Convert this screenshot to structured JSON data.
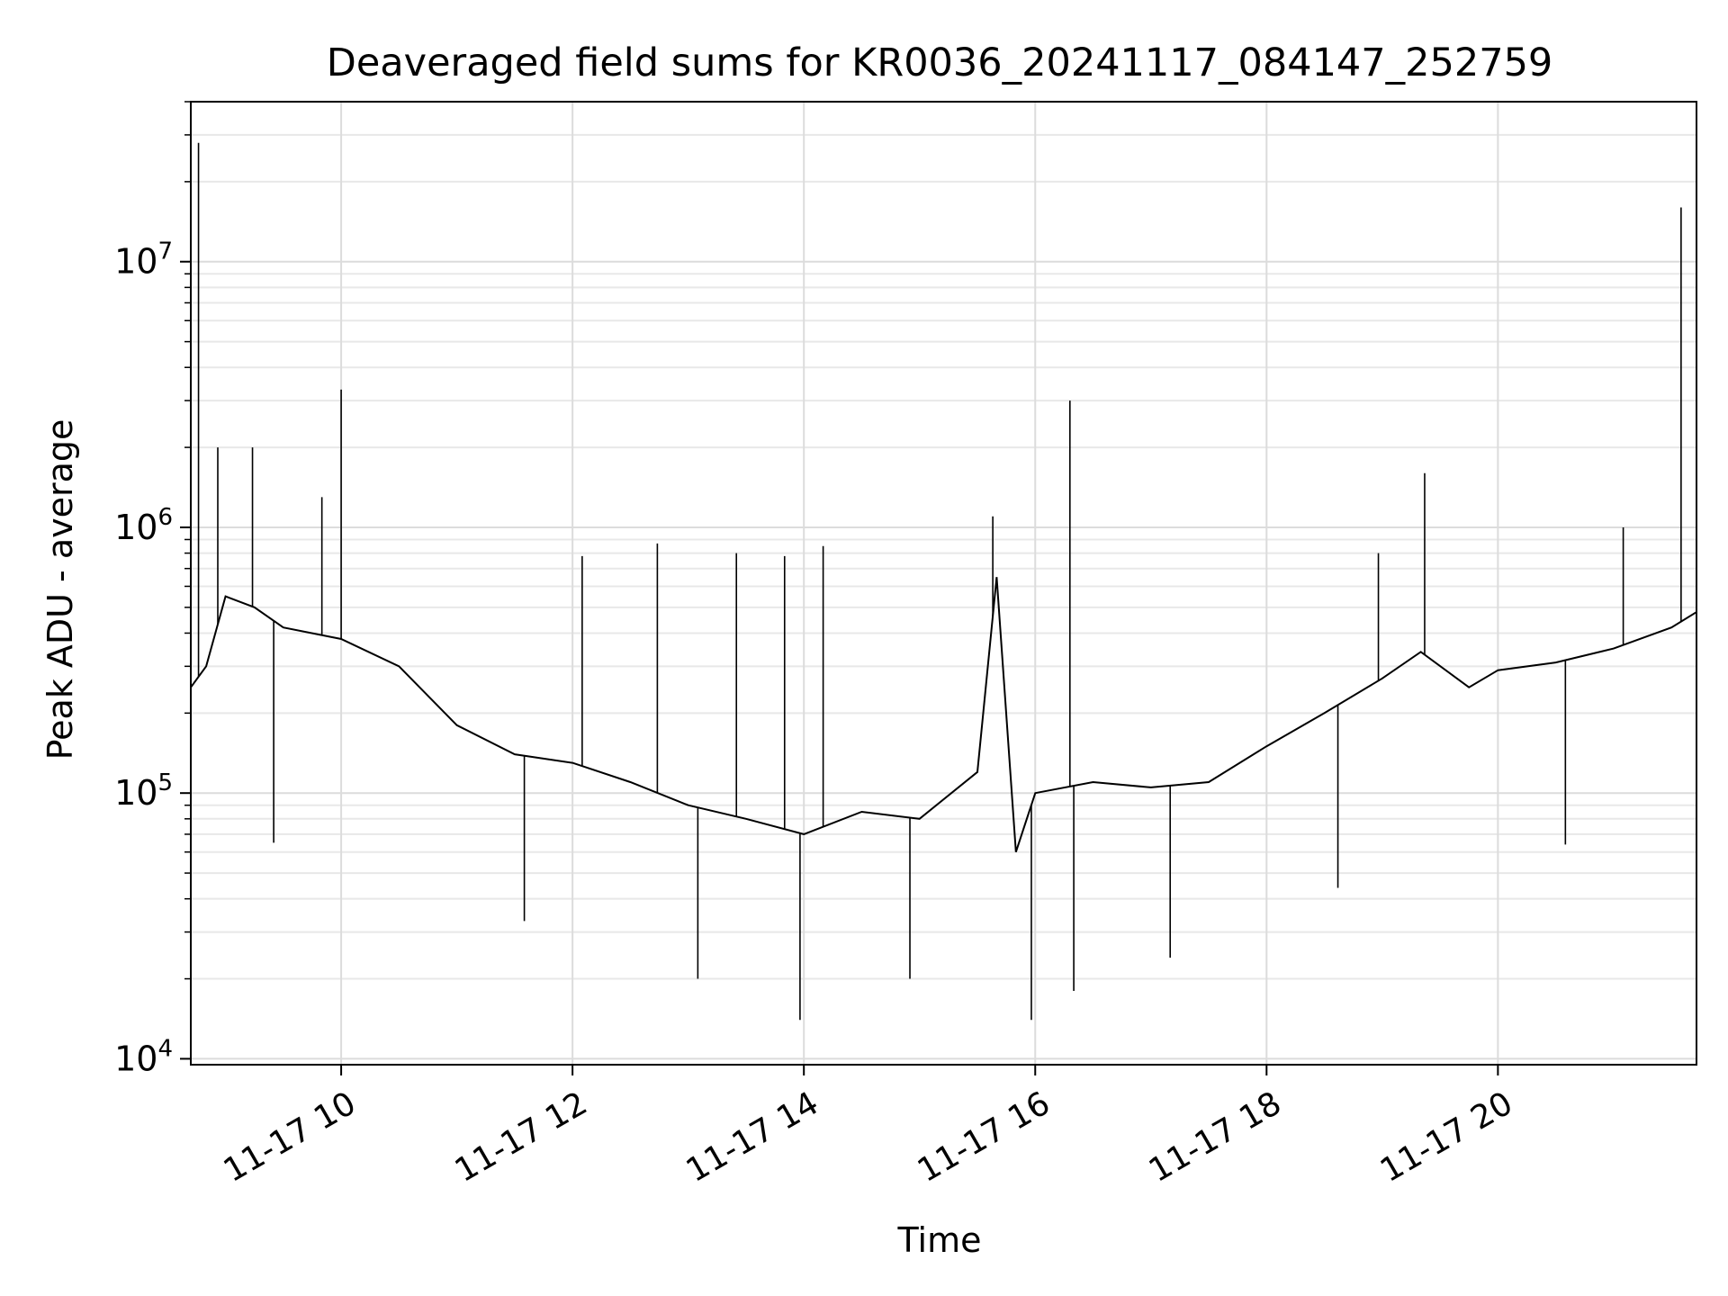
{
  "chart_data": {
    "type": "line",
    "title": "Deaveraged field sums for KR0036_20241117_084147_252759",
    "xlabel": "Time",
    "ylabel": "Peak ADU - average",
    "yscale": "log",
    "xlim": [
      "2024-11-17 08:42",
      "2024-11-17 21:43"
    ],
    "ylim": [
      9500,
      40000000
    ],
    "grid": true,
    "line_color": "#000000",
    "x_ticks": [
      "11-17 10",
      "11-17 12",
      "11-17 14",
      "11-17 16",
      "11-17 18",
      "11-17 20"
    ],
    "x_tick_values": [
      "2024-11-17 10:00",
      "2024-11-17 12:00",
      "2024-11-17 14:00",
      "2024-11-17 16:00",
      "2024-11-17 18:00",
      "2024-11-17 20:00"
    ],
    "y_ticks": [
      {
        "base": "10",
        "exp": "4",
        "value": 10000
      },
      {
        "base": "10",
        "exp": "5",
        "value": 100000
      },
      {
        "base": "10",
        "exp": "6",
        "value": 1000000
      },
      {
        "base": "10",
        "exp": "7",
        "value": 10000000
      }
    ],
    "series": [
      {
        "x": [
          "2024-11-17 08:42",
          "2024-11-17 08:50",
          "2024-11-17 09:00",
          "2024-11-17 09:15",
          "2024-11-17 09:30",
          "2024-11-17 10:00",
          "2024-11-17 10:30",
          "2024-11-17 11:00",
          "2024-11-17 11:30",
          "2024-11-17 12:00",
          "2024-11-17 12:30",
          "2024-11-17 13:00",
          "2024-11-17 13:30",
          "2024-11-17 14:00",
          "2024-11-17 14:30",
          "2024-11-17 15:00",
          "2024-11-17 15:30",
          "2024-11-17 15:40",
          "2024-11-17 15:50",
          "2024-11-17 16:00",
          "2024-11-17 16:30",
          "2024-11-17 17:00",
          "2024-11-17 17:30",
          "2024-11-17 18:00",
          "2024-11-17 18:30",
          "2024-11-17 19:00",
          "2024-11-17 19:20",
          "2024-11-17 19:45",
          "2024-11-17 20:00",
          "2024-11-17 20:30",
          "2024-11-17 21:00",
          "2024-11-17 21:30",
          "2024-11-17 21:43"
        ],
        "y": [
          250000,
          300000,
          550000,
          500000,
          420000,
          380000,
          300000,
          180000,
          140000,
          130000,
          110000,
          90000,
          80000,
          70000,
          85000,
          80000,
          120000,
          650000,
          60000,
          100000,
          110000,
          105000,
          110000,
          150000,
          200000,
          270000,
          340000,
          250000,
          290000,
          310000,
          350000,
          420000,
          480000
        ]
      }
    ],
    "spikes": [
      {
        "x": "2024-11-17 08:46",
        "y": 28000000
      },
      {
        "x": "2024-11-17 08:56",
        "y": 2000000
      },
      {
        "x": "2024-11-17 09:14",
        "y": 2000000
      },
      {
        "x": "2024-11-17 09:50",
        "y": 1300000
      },
      {
        "x": "2024-11-17 10:00",
        "y": 3300000
      },
      {
        "x": "2024-11-17 12:05",
        "y": 780000
      },
      {
        "x": "2024-11-17 12:44",
        "y": 870000
      },
      {
        "x": "2024-11-17 13:25",
        "y": 800000
      },
      {
        "x": "2024-11-17 13:50",
        "y": 780000
      },
      {
        "x": "2024-11-17 14:10",
        "y": 850000
      },
      {
        "x": "2024-11-17 15:38",
        "y": 1100000
      },
      {
        "x": "2024-11-17 16:18",
        "y": 3000000
      },
      {
        "x": "2024-11-17 18:58",
        "y": 800000
      },
      {
        "x": "2024-11-17 19:22",
        "y": 1600000
      },
      {
        "x": "2024-11-17 21:05",
        "y": 1000000
      },
      {
        "x": "2024-11-17 21:35",
        "y": 16000000
      }
    ],
    "dips": [
      {
        "x": "2024-11-17 09:25",
        "y": 65000
      },
      {
        "x": "2024-11-17 11:35",
        "y": 33000
      },
      {
        "x": "2024-11-17 13:05",
        "y": 20000
      },
      {
        "x": "2024-11-17 13:58",
        "y": 14000
      },
      {
        "x": "2024-11-17 14:55",
        "y": 20000
      },
      {
        "x": "2024-11-17 15:58",
        "y": 14000
      },
      {
        "x": "2024-11-17 16:20",
        "y": 18000
      },
      {
        "x": "2024-11-17 17:10",
        "y": 24000
      },
      {
        "x": "2024-11-17 18:37",
        "y": 44000
      },
      {
        "x": "2024-11-17 20:35",
        "y": 64000
      }
    ]
  }
}
